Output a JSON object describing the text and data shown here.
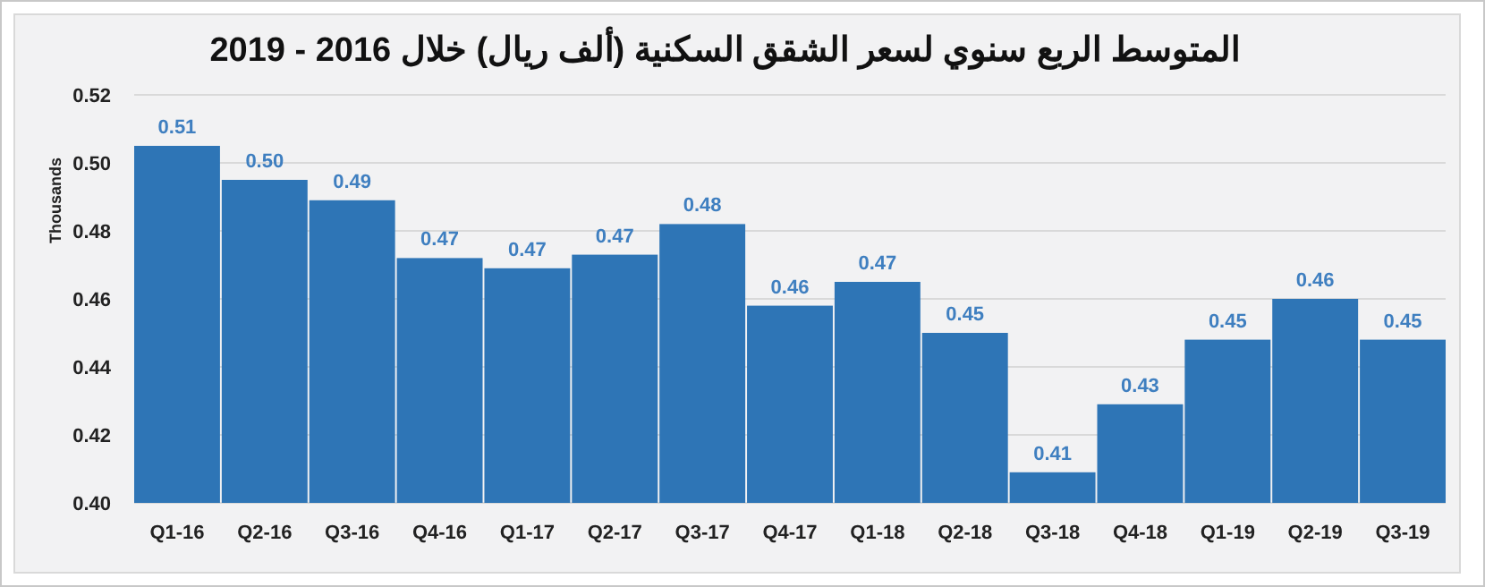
{
  "chart_data": {
    "type": "bar",
    "title": "المتوسط الربع سنوي لسعر الشقق السكنية (ألف ريال) خلال 2016 - 2019",
    "ylabel": "Thousands",
    "categories": [
      "Q1-16",
      "Q2-16",
      "Q3-16",
      "Q4-16",
      "Q1-17",
      "Q2-17",
      "Q3-17",
      "Q4-17",
      "Q1-18",
      "Q2-18",
      "Q3-18",
      "Q4-18",
      "Q1-19",
      "Q2-19",
      "Q3-19"
    ],
    "values": [
      0.505,
      0.495,
      0.489,
      0.472,
      0.469,
      0.473,
      0.482,
      0.458,
      0.465,
      0.45,
      0.409,
      0.429,
      0.448,
      0.46,
      0.448
    ],
    "value_labels": [
      "0.51",
      "0.50",
      "0.49",
      "0.47",
      "0.47",
      "0.47",
      "0.48",
      "0.46",
      "0.47",
      "0.45",
      "0.41",
      "0.43",
      "0.45",
      "0.46",
      "0.45"
    ],
    "color": "#2e75b6",
    "ylim": [
      0.4,
      0.52
    ],
    "yticks": [
      {
        "value": 0.4,
        "label": "0.40"
      },
      {
        "value": 0.42,
        "label": "0.42"
      },
      {
        "value": 0.44,
        "label": "0.44"
      },
      {
        "value": 0.46,
        "label": "0.46"
      },
      {
        "value": 0.48,
        "label": "0.48"
      },
      {
        "value": 0.5,
        "label": "0.50"
      },
      {
        "value": 0.52,
        "label": "0.52"
      }
    ],
    "grid": "y"
  }
}
